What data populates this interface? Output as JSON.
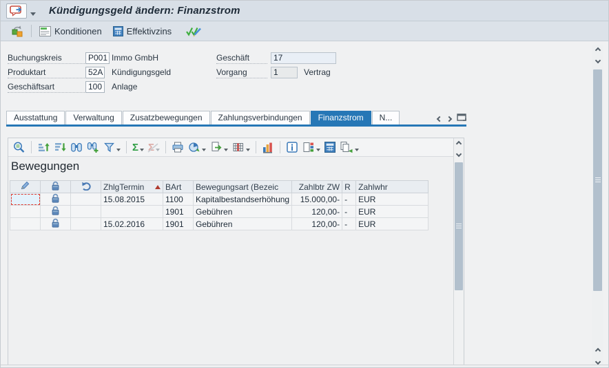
{
  "titlebar": {
    "title": "Kündigungsgeld ändern: Finanzstrom"
  },
  "app_toolbar": {
    "konditionen_label": "Konditionen",
    "effektivzins_label": "Effektivzins"
  },
  "form": {
    "left_fields": [
      {
        "label": "Buchungskreis",
        "value": "P001",
        "desc": "Immo GmbH"
      },
      {
        "label": "Produktart",
        "value": "52A",
        "desc": "Kündigungsgeld"
      },
      {
        "label": "Geschäftsart",
        "value": "100",
        "desc": "Anlage"
      }
    ],
    "right_fields": [
      {
        "label": "Geschäft",
        "value": "17",
        "desc": ""
      },
      {
        "label": "Vorgang",
        "value": "1",
        "desc": "Vertrag"
      }
    ]
  },
  "tabs": {
    "items": [
      {
        "label": "Ausstattung",
        "active": false
      },
      {
        "label": "Verwaltung",
        "active": false
      },
      {
        "label": "Zusatzbewegungen",
        "active": false
      },
      {
        "label": "Zahlungsverbindungen",
        "active": false
      },
      {
        "label": "Finanzstrom",
        "active": true
      },
      {
        "label": "N...",
        "active": false
      }
    ]
  },
  "grid": {
    "title": "Bewegungen",
    "columns": [
      "ZhlgTermin",
      "BArt",
      "Bewegungsart (Bezeic",
      "Zahlbtr ZW",
      "R",
      "Zahlwhr"
    ],
    "sort_column": "ZhlgTermin",
    "sort_direction": "ascending",
    "rows": [
      {
        "zhlg_termin": "15.08.2015",
        "bart": "1100",
        "bewegungsart": "Kapitalbestandserhöhung",
        "zahlbtr_zw": "15.000,00-",
        "r": "-",
        "zahlwhr": "EUR"
      },
      {
        "zhlg_termin": "",
        "bart": "1901",
        "bewegungsart": "Gebühren",
        "zahlbtr_zw": "120,00-",
        "r": "-",
        "zahlwhr": "EUR"
      },
      {
        "zhlg_termin": "15.02.2016",
        "bart": "1901",
        "bewegungsart": "Gebühren",
        "zahlbtr_zw": "120,00-",
        "r": "-",
        "zahlwhr": "EUR"
      }
    ]
  },
  "colors": {
    "accent_blue": "#2677b6",
    "header_bg": "#d8dfe7",
    "content_bg": "#f0f1f2",
    "focus_cell_bg": "#e4f2fc",
    "focus_cell_border": "#e0392e"
  }
}
